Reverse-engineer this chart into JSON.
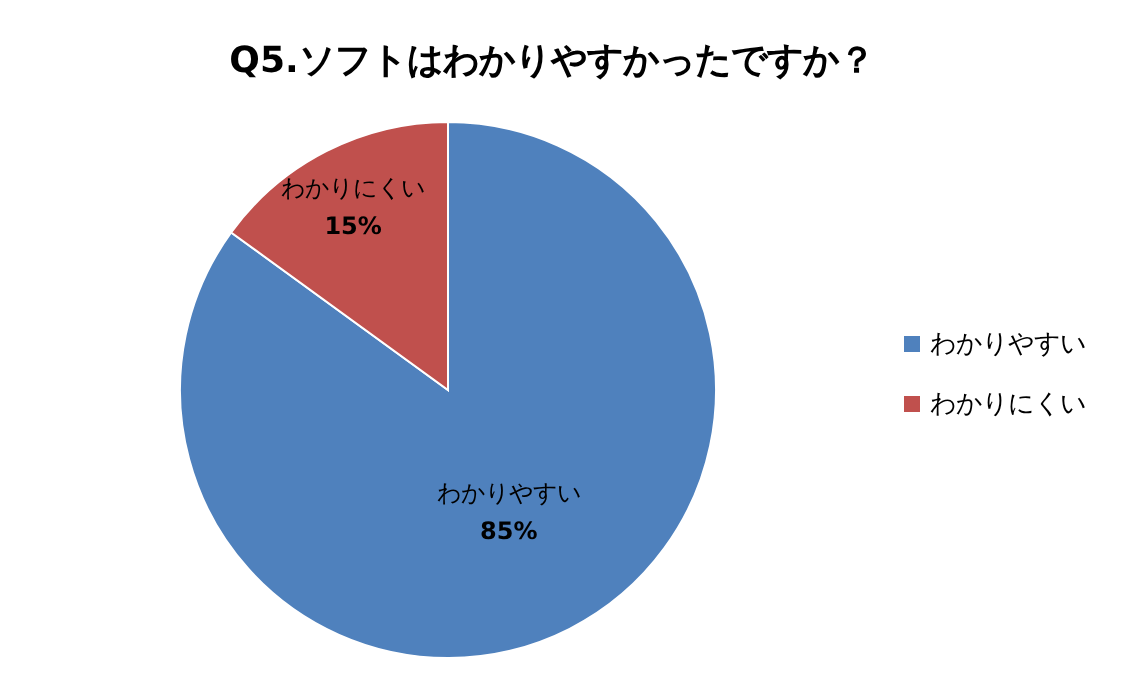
{
  "chart_data": {
    "type": "pie",
    "title": "Q5.ソフトはわかりやすかったですか？",
    "categories": [
      "わかりやすい",
      "わかりにくい"
    ],
    "values": [
      85,
      15
    ],
    "colors": [
      "#4f81bd",
      "#c0504d"
    ],
    "value_labels": [
      "85%",
      "15%"
    ],
    "legend": "right"
  }
}
